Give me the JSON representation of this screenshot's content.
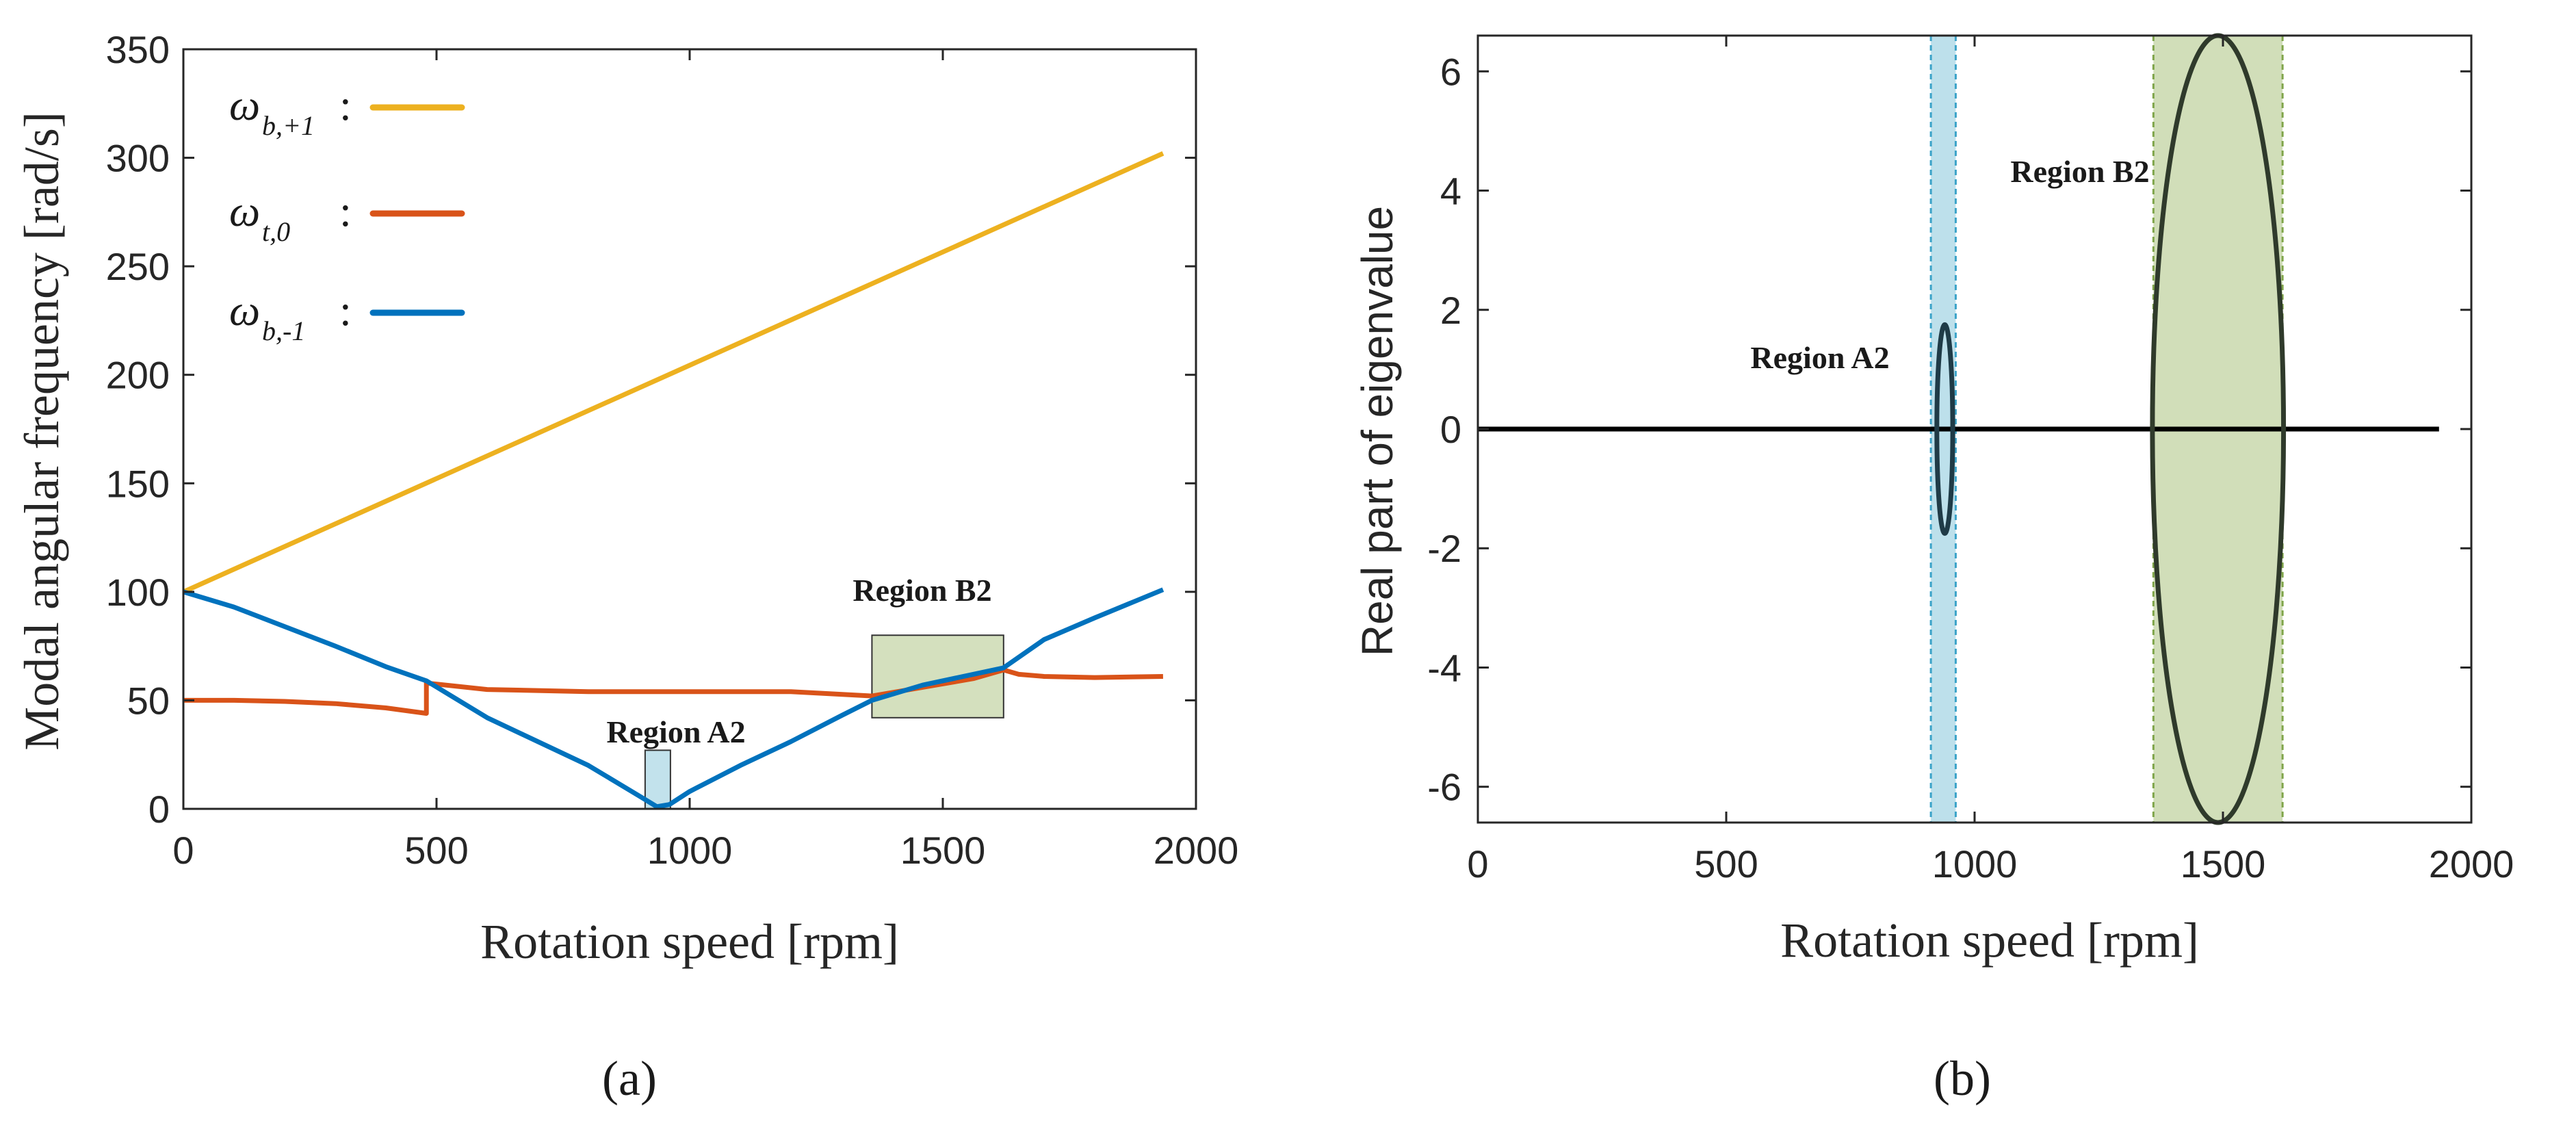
{
  "chart_data": [
    {
      "type": "line",
      "panel": "(a)",
      "xlabel": "Rotation speed [rpm]",
      "ylabel": "Modal angular frequency [rad/s]",
      "xlim": [
        0,
        2000
      ],
      "ylim": [
        0,
        350
      ],
      "xticks": [
        0,
        500,
        1000,
        1500,
        2000
      ],
      "yticks": [
        0,
        50,
        100,
        150,
        200,
        250,
        300,
        350
      ],
      "legend_placement": "top-left",
      "series": [
        {
          "name": "ω_{b,+1}",
          "symbol": "ω",
          "subscript": "b,+1",
          "color": "#EDB120",
          "x": [
            0,
            1935
          ],
          "y": [
            100,
            302
          ]
        },
        {
          "name": "ω_{t,0}",
          "symbol": "ω",
          "subscript": "t,0",
          "color": "#D95319",
          "x": [
            0,
            100,
            200,
            300,
            400,
            480,
            480,
            600,
            800,
            1000,
            1200,
            1360,
            1460,
            1560,
            1620,
            1620,
            1650,
            1700,
            1800,
            1935
          ],
          "y": [
            50,
            50,
            49.5,
            48.5,
            46.5,
            44,
            58,
            55,
            54,
            54,
            54,
            52,
            56,
            60,
            64,
            64,
            62,
            61,
            60.5,
            61
          ]
        },
        {
          "name": "ω_{b,-1}",
          "symbol": "ω",
          "subscript": "b,-1",
          "color": "#0072BD",
          "x": [
            0,
            100,
            200,
            300,
            400,
            480,
            600,
            700,
            800,
            900,
            935,
            960,
            1000,
            1100,
            1200,
            1300,
            1360,
            1460,
            1560,
            1620,
            1700,
            1800,
            1935
          ],
          "y": [
            100,
            93,
            84,
            75,
            65.5,
            59,
            42,
            31,
            20,
            6,
            1,
            2,
            8,
            20,
            31,
            43,
            50,
            57,
            62,
            65,
            78,
            88,
            101
          ]
        }
      ],
      "regions": [
        {
          "label": "Region A2",
          "x": [
            912,
            962
          ],
          "y": [
            0,
            27
          ],
          "color": "#ADD8E6"
        },
        {
          "label": "Region B2",
          "x": [
            1360,
            1620
          ],
          "y": [
            42,
            80
          ],
          "color": "#C5D6A8"
        }
      ]
    },
    {
      "type": "line",
      "panel": "(b)",
      "xlabel": "Rotation speed [rpm]",
      "ylabel": "Real part of eigenvalue",
      "xlim": [
        0,
        2000
      ],
      "ylim": [
        -6.6,
        6.6
      ],
      "xticks": [
        0,
        500,
        1000,
        1500,
        2000
      ],
      "yticks": [
        -6,
        -4,
        -2,
        0,
        2,
        4,
        6
      ],
      "series": [
        {
          "name": "zero-line",
          "color": "#000000",
          "x": [
            0,
            1935
          ],
          "y": [
            0,
            0
          ]
        },
        {
          "name": "ellipse-A2",
          "color": "#1F3B47",
          "center": 940,
          "halfwidth": 16,
          "amplitude": 1.75
        },
        {
          "name": "ellipse-B2",
          "color": "#2F3A2B",
          "center": 1490,
          "halfwidth": 132,
          "amplitude": 6.6
        }
      ],
      "regions": [
        {
          "label": "Region A2",
          "x": [
            912,
            962
          ],
          "color": "#ADD8E6"
        },
        {
          "label": "Region B2",
          "x": [
            1360,
            1620
          ],
          "color": "#C5D6A8"
        }
      ]
    }
  ]
}
